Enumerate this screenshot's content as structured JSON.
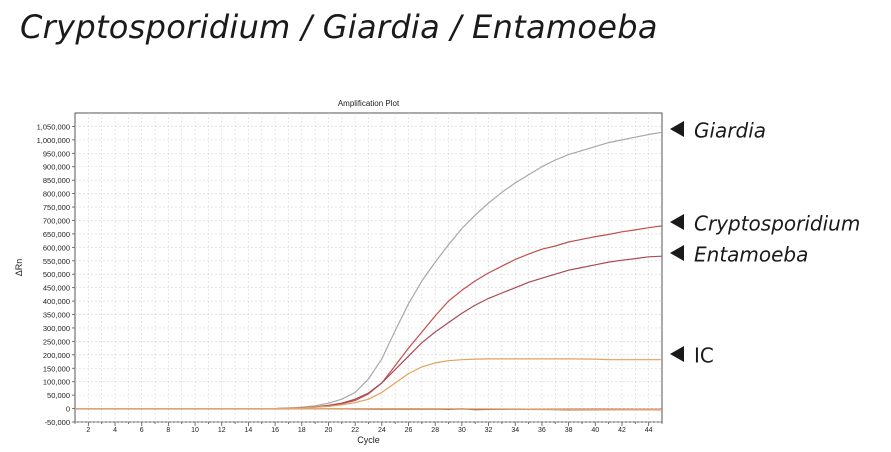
{
  "page": {
    "title": "Cryptosporidium / Giardia / Entamoeba"
  },
  "annotations": [
    {
      "label": "Giardia",
      "series": "Giardia",
      "italic": true
    },
    {
      "label": "Cryptosporidium",
      "series": "Cryptosporidium",
      "italic": true
    },
    {
      "label": "Entamoeba",
      "series": "Entamoeba",
      "italic": true
    },
    {
      "label": "IC",
      "series": "IC",
      "italic": false
    }
  ],
  "chart_data": {
    "type": "line",
    "title": "Amplification Plot",
    "xlabel": "Cycle",
    "ylabel": "ΔRn",
    "xlim": [
      1,
      45
    ],
    "ylim": [
      -50000,
      1100000
    ],
    "xticks": [
      2,
      4,
      6,
      8,
      10,
      12,
      14,
      16,
      18,
      20,
      22,
      24,
      26,
      28,
      30,
      32,
      34,
      36,
      38,
      40,
      42,
      44
    ],
    "yticks": [
      -50000,
      0,
      50000,
      100000,
      150000,
      200000,
      250000,
      300000,
      350000,
      400000,
      450000,
      500000,
      550000,
      600000,
      650000,
      700000,
      750000,
      800000,
      850000,
      900000,
      950000,
      1000000,
      1050000
    ],
    "ytick_labels": [
      "-50,000",
      "0",
      "50,000",
      "100,000",
      "150,000",
      "200,000",
      "250,000",
      "300,000",
      "350,000",
      "400,000",
      "450,000",
      "500,000",
      "550,000",
      "600,000",
      "650,000",
      "700,000",
      "750,000",
      "800,000",
      "850,000",
      "900,000",
      "950,000",
      "1,000,000",
      "1,050,000"
    ],
    "grid": true,
    "legend": "none",
    "series": [
      {
        "name": "Giardia",
        "color": "#a8a8a8",
        "x": [
          1,
          16,
          17,
          18,
          19,
          20,
          21,
          22,
          23,
          24,
          25,
          26,
          27,
          28,
          29,
          30,
          31,
          32,
          33,
          34,
          35,
          36,
          37,
          38,
          39,
          40,
          41,
          42,
          43,
          44,
          45
        ],
        "y": [
          0,
          0,
          2000,
          5000,
          10000,
          20000,
          35000,
          60000,
          110000,
          185000,
          290000,
          390000,
          475000,
          545000,
          610000,
          670000,
          720000,
          765000,
          805000,
          840000,
          870000,
          900000,
          925000,
          945000,
          960000,
          975000,
          990000,
          1000000,
          1010000,
          1020000,
          1028000
        ]
      },
      {
        "name": "Cryptosporidium",
        "color": "#c0504d",
        "x": [
          1,
          16,
          17,
          18,
          19,
          20,
          21,
          22,
          23,
          24,
          25,
          26,
          27,
          28,
          29,
          30,
          31,
          32,
          33,
          34,
          35,
          36,
          37,
          38,
          39,
          40,
          41,
          42,
          43,
          44,
          45
        ],
        "y": [
          0,
          0,
          1000,
          3000,
          5000,
          10000,
          18000,
          30000,
          55000,
          95000,
          160000,
          225000,
          285000,
          345000,
          400000,
          440000,
          475000,
          505000,
          530000,
          555000,
          575000,
          593000,
          605000,
          620000,
          630000,
          640000,
          648000,
          658000,
          665000,
          673000,
          680000
        ]
      },
      {
        "name": "Entamoeba",
        "color": "#a84a55",
        "x": [
          1,
          16,
          17,
          18,
          19,
          20,
          21,
          22,
          23,
          24,
          25,
          26,
          27,
          28,
          29,
          30,
          31,
          32,
          33,
          34,
          35,
          36,
          37,
          38,
          39,
          40,
          41,
          42,
          43,
          44,
          45
        ],
        "y": [
          0,
          0,
          1000,
          3000,
          6000,
          12000,
          20000,
          35000,
          58000,
          95000,
          145000,
          195000,
          245000,
          285000,
          320000,
          355000,
          385000,
          410000,
          430000,
          450000,
          470000,
          485000,
          500000,
          515000,
          525000,
          535000,
          545000,
          552000,
          558000,
          565000,
          567000
        ]
      },
      {
        "name": "IC",
        "color": "#e3a15a",
        "x": [
          1,
          16,
          18,
          20,
          21,
          22,
          23,
          24,
          25,
          26,
          27,
          28,
          29,
          30,
          31,
          32,
          34,
          36,
          38,
          40,
          41,
          42,
          44,
          45
        ],
        "y": [
          0,
          0,
          2000,
          8000,
          14000,
          22000,
          35000,
          60000,
          95000,
          130000,
          155000,
          170000,
          178000,
          182000,
          184000,
          185000,
          185000,
          185000,
          185000,
          184000,
          182000,
          182000,
          182000,
          182000
        ]
      },
      {
        "name": "",
        "color": "#7a2020",
        "x": [
          1,
          16,
          18,
          20,
          22,
          24,
          26,
          28,
          29,
          30,
          31,
          32,
          34,
          38,
          40,
          45
        ],
        "y": [
          0,
          0,
          -500,
          0,
          -1500,
          -2500,
          -2500,
          -1500,
          -3000,
          -1000,
          -4000,
          -3000,
          -2500,
          -2500,
          -2500,
          -3000
        ]
      },
      {
        "name": "",
        "color": "#b09a6a",
        "x": [
          1,
          16,
          20,
          24,
          28,
          32,
          36,
          37,
          38,
          40,
          42,
          44,
          45
        ],
        "y": [
          0,
          0,
          -500,
          -1500,
          -2000,
          -2500,
          -3500,
          -4500,
          -5500,
          -5000,
          -4500,
          -4500,
          -5000
        ]
      },
      {
        "name": "",
        "color": "#e8a068",
        "x": [
          1,
          20,
          26,
          30,
          34,
          36,
          40,
          44,
          45
        ],
        "y": [
          0,
          0,
          0,
          -1000,
          -1500,
          -2500,
          -3500,
          -4000,
          -4000
        ]
      }
    ]
  }
}
